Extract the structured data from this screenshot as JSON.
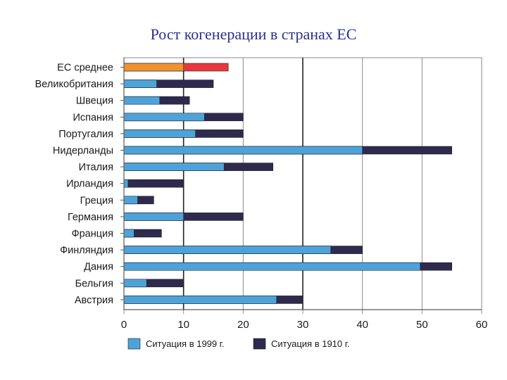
{
  "title": "Рост когенерации в странах ЕС",
  "chart_data": {
    "type": "bar",
    "orientation": "horizontal",
    "stacked": "overlay",
    "categories": [
      "ЕС среднее",
      "Великобритания",
      "Швеция",
      "Испания",
      "Португалия",
      "Нидерланды",
      "Италия",
      "Ирландия",
      "Греция",
      "Германия",
      "Франция",
      "Финляндия",
      "Дания",
      "Бельгия",
      "Австрия"
    ],
    "series": [
      {
        "name": "Ситуация в 1999 г.",
        "color": "#4da3d9",
        "values": [
          10,
          5.5,
          6,
          13.5,
          12,
          40,
          16.8,
          0.7,
          2.3,
          10,
          1.7,
          34.7,
          49.7,
          3.8,
          25.6
        ]
      },
      {
        "name": "Ситуация в 1910 г.",
        "color": "#2e2a4f",
        "values": [
          17.5,
          15,
          11,
          20,
          20,
          55,
          25,
          10,
          5,
          20,
          6.3,
          40,
          55,
          10,
          30
        ]
      }
    ],
    "highlight": {
      "category": "ЕС среднее",
      "colors": [
        "#f0922e",
        "#e8383d"
      ]
    },
    "xlim": [
      0,
      60
    ],
    "xticks": [
      "0",
      "10",
      "20",
      "30",
      "40",
      "50",
      "60"
    ],
    "grid": true,
    "legend_position": "bottom"
  }
}
